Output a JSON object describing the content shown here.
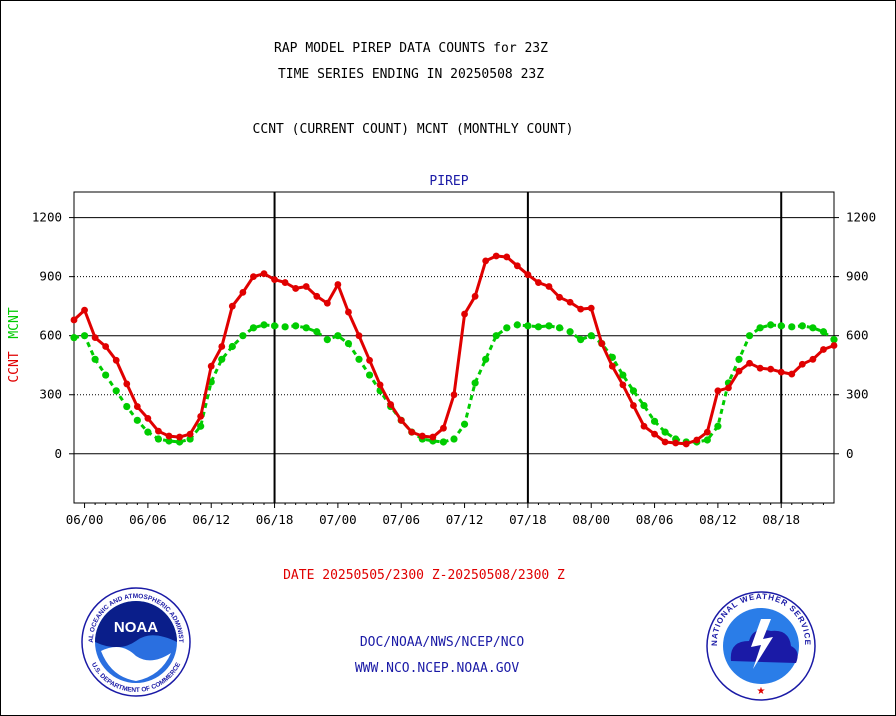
{
  "header": {
    "line1": "RAP MODEL PIREP DATA COUNTS for 23Z",
    "line2": "TIME SERIES ENDING IN 20250508 23Z",
    "line3": "CCNT (CURRENT COUNT) MCNT (MONTHLY COUNT)"
  },
  "footer": {
    "date_range": "DATE 20250505/2300 Z-20250508/2300 Z",
    "org": "DOC/NOAA/NWS/NCEP/NCO",
    "url": "WWW.NCO.NCEP.NOAA.GOV"
  },
  "logos": {
    "noaa_text": "NOAA",
    "noaa_ring": "NATIONAL OCEANIC AND ATMOSPHERIC ADMINISTRATION",
    "noaa_bottom": "U.S. DEPARTMENT OF COMMERCE",
    "nws_ring": "NATIONAL WEATHER SERVICE"
  },
  "colors": {
    "ccnt": "#e00000",
    "mcnt": "#00cc00",
    "panel_title": "#1a1aa6",
    "grid": "#000000"
  },
  "chart_data": {
    "type": "line",
    "title": "PIREP",
    "ylabel_ccnt": "CCNT",
    "ylabel_mcnt": "MCNT",
    "ylim": [
      -250,
      1330
    ],
    "yticks": [
      0,
      300,
      600,
      900,
      1200
    ],
    "x_range_hours": [
      -1,
      71
    ],
    "x_tick_labels": [
      "06/00",
      "06/06",
      "06/12",
      "06/18",
      "07/00",
      "07/06",
      "07/12",
      "07/18",
      "08/00",
      "08/06",
      "08/12",
      "08/18"
    ],
    "day_boundary_labels": [
      "06/18",
      "07/18",
      "08/18"
    ],
    "dashed_grid_values": [
      300,
      900
    ],
    "solid_grid_values": [
      0,
      600,
      1200
    ],
    "series": [
      {
        "name": "CCNT",
        "style": "solid",
        "values": [
          680,
          730,
          590,
          545,
          475,
          355,
          240,
          180,
          115,
          90,
          85,
          100,
          190,
          445,
          545,
          750,
          820,
          900,
          915,
          885,
          870,
          840,
          850,
          800,
          765,
          860,
          720,
          600,
          475,
          350,
          250,
          170,
          110,
          90,
          85,
          130,
          300,
          710,
          800,
          980,
          1005,
          1000,
          955,
          910,
          870,
          850,
          795,
          770,
          735,
          740,
          560,
          445,
          350,
          245,
          140,
          100,
          60,
          55,
          50,
          70,
          110,
          320,
          335,
          420,
          460,
          435,
          430,
          415,
          405,
          455,
          480,
          530,
          550
        ]
      },
      {
        "name": "MCNT",
        "style": "dashed",
        "values": [
          590,
          600,
          480,
          400,
          320,
          240,
          170,
          110,
          75,
          65,
          60,
          75,
          140,
          365,
          480,
          545,
          600,
          640,
          655,
          650,
          645,
          650,
          640,
          620,
          580,
          600,
          560,
          480,
          400,
          320,
          240,
          170,
          110,
          75,
          65,
          60,
          75,
          150,
          360,
          480,
          600,
          640,
          655,
          650,
          645,
          650,
          640,
          620,
          580,
          600,
          560,
          490,
          400,
          320,
          245,
          165,
          110,
          75,
          60,
          60,
          70,
          140,
          360,
          480,
          600,
          640,
          655,
          650,
          645,
          650,
          640,
          620,
          580
        ]
      }
    ]
  }
}
